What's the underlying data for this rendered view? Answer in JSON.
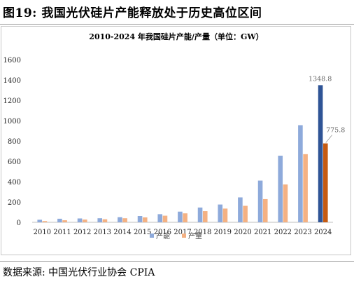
{
  "figure": {
    "title": "图19:  我国光伏硅片产能释放处于历史高位区间",
    "source": "数据来源:  中国光伏行业协会 CPIA"
  },
  "colors": {
    "capacity": "#8eaadb",
    "output": "#f4b183",
    "capacity_highlight": "#2f5496",
    "output_highlight": "#c55a11"
  },
  "chart_data": {
    "type": "bar",
    "title": "2010-2024 年我国硅片产能/产量（单位：GW）",
    "xlabel": "",
    "ylabel": "",
    "ylim": [
      0,
      1600
    ],
    "yticks": [
      0,
      200,
      400,
      600,
      800,
      1000,
      1200,
      1400,
      1600
    ],
    "grid": false,
    "legend_position": "bottom",
    "categories": [
      "2010",
      "2011",
      "2012",
      "2013",
      "2014",
      "2015",
      "2016",
      "2017",
      "2018",
      "2019",
      "2020",
      "2021",
      "2022",
      "2023",
      "2024"
    ],
    "series": [
      {
        "name": "产能",
        "values": [
          25,
          35,
          38,
          40,
          50,
          62,
          80,
          105,
          145,
          175,
          245,
          410,
          655,
          955,
          1348.8
        ]
      },
      {
        "name": "产量",
        "values": [
          12,
          20,
          27,
          30,
          40,
          48,
          65,
          88,
          110,
          135,
          162,
          228,
          372,
          670,
          775.8
        ]
      }
    ],
    "data_labels": [
      "1348.8",
      "775.8"
    ]
  }
}
